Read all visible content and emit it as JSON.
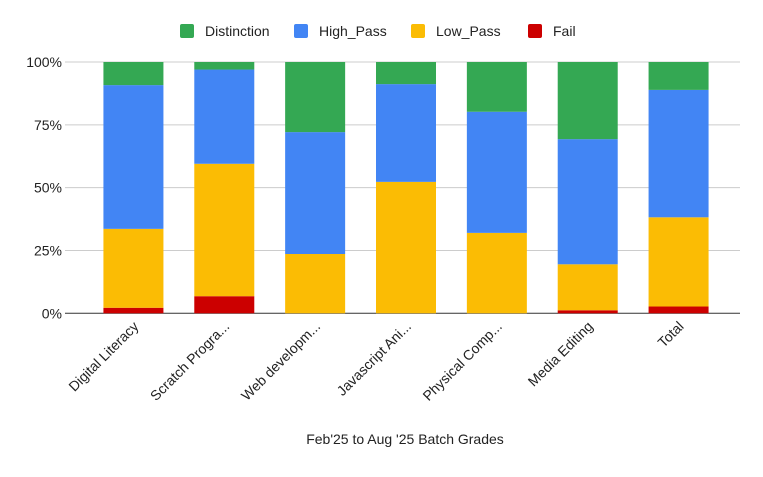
{
  "chart_data": {
    "type": "bar",
    "stacked": "percent",
    "title": "",
    "xlabel": "Feb'25 to Aug '25 Batch Grades",
    "ylabel": "",
    "ylim": [
      0,
      100
    ],
    "yticks": [
      "0%",
      "25%",
      "50%",
      "75%",
      "100%"
    ],
    "categories": [
      "Digital Literacy",
      "Scratch Progra...",
      "Web developm...",
      "Javascript Ani...",
      "Physical Comp...",
      "Media Editing",
      "Total"
    ],
    "legend_position": "top",
    "series": [
      {
        "name": "Fail",
        "color": "#cc0000",
        "values": [
          2.2,
          6.8,
          0,
          0,
          0,
          1.2,
          2.7
        ]
      },
      {
        "name": "Low_Pass",
        "color": "#fbbc04",
        "values": [
          31.4,
          52.7,
          23.6,
          52.3,
          32.0,
          18.3,
          35.5
        ]
      },
      {
        "name": "High_Pass",
        "color": "#4285f4",
        "values": [
          57.2,
          37.5,
          48.5,
          38.9,
          48.2,
          49.8,
          50.7
        ]
      },
      {
        "name": "Distinction",
        "color": "#34a853",
        "values": [
          9.2,
          3.0,
          27.9,
          8.8,
          19.8,
          30.7,
          11.1
        ]
      }
    ],
    "legend_order": [
      "Distinction",
      "High_Pass",
      "Low_Pass",
      "Fail"
    ]
  }
}
